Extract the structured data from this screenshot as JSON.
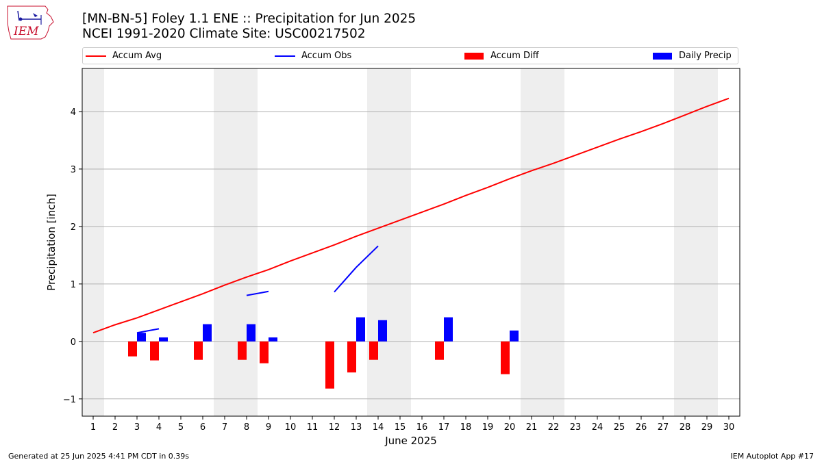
{
  "header": {
    "title_line1": "[MN-BN-5] Foley 1.1 ENE :: Precipitation for Jun 2025",
    "title_line2": "NCEI 1991-2020 Climate Site: USC00217502"
  },
  "logo": {
    "text": "IEM",
    "icon": "iem-iowa-logo-icon",
    "color": "#c8102e"
  },
  "footer": {
    "generated": "Generated at 25 Jun 2025 4:41 PM CDT in 0.39s",
    "app": "IEM Autoplot App #17"
  },
  "chart_data": {
    "type": "bar",
    "title": "[MN-BN-5] Foley 1.1 ENE :: Precipitation for Jun 2025",
    "xlabel": "June 2025",
    "ylabel": "Precipitation [inch]",
    "ylim": [
      -1.3,
      4.75
    ],
    "xlim": [
      0.5,
      30.5
    ],
    "yticks": [
      -1,
      0,
      1,
      2,
      3,
      4
    ],
    "ytick_labels": [
      "−1",
      "0",
      "1",
      "2",
      "3",
      "4"
    ],
    "xticks": [
      1,
      2,
      3,
      4,
      5,
      6,
      7,
      8,
      9,
      10,
      11,
      12,
      13,
      14,
      15,
      16,
      17,
      18,
      19,
      20,
      21,
      22,
      23,
      24,
      25,
      26,
      27,
      28,
      29,
      30
    ],
    "grid": "horizontal",
    "legend_position": "top",
    "weekend_shading": [
      [
        0.5,
        1.5
      ],
      [
        6.5,
        8.5
      ],
      [
        13.5,
        15.5
      ],
      [
        20.5,
        22.5
      ],
      [
        27.5,
        29.5
      ]
    ],
    "series": [
      {
        "name": "Accum Avg",
        "kind": "line",
        "color": "#ff0000",
        "x": [
          1,
          2,
          3,
          4,
          5,
          6,
          7,
          8,
          9,
          10,
          11,
          12,
          13,
          14,
          15,
          16,
          17,
          18,
          19,
          20,
          21,
          22,
          23,
          24,
          25,
          26,
          27,
          28,
          29,
          30
        ],
        "values": [
          0.15,
          0.29,
          0.41,
          0.55,
          0.69,
          0.83,
          0.98,
          1.12,
          1.25,
          1.4,
          1.54,
          1.68,
          1.83,
          1.97,
          2.11,
          2.25,
          2.39,
          2.54,
          2.68,
          2.83,
          2.97,
          3.1,
          3.24,
          3.38,
          3.52,
          3.65,
          3.79,
          3.94,
          4.09,
          4.23
        ]
      },
      {
        "name": "Accum Obs",
        "kind": "line",
        "color": "#0000ff",
        "segments": [
          {
            "x": [
              3,
              4
            ],
            "values": [
              0.15,
              0.22
            ]
          },
          {
            "x": [
              8,
              9
            ],
            "values": [
              0.8,
              0.87
            ]
          },
          {
            "x": [
              12,
              13,
              14
            ],
            "values": [
              0.86,
              1.29,
              1.66
            ]
          }
        ]
      },
      {
        "name": "Accum Diff",
        "kind": "bar",
        "color": "#ff0000",
        "x": [
          3,
          4,
          6,
          8,
          9,
          12,
          13,
          14,
          17,
          20
        ],
        "values": [
          -0.26,
          -0.33,
          -0.32,
          -0.32,
          -0.38,
          -0.82,
          -0.54,
          -0.32,
          -0.32,
          -0.57
        ]
      },
      {
        "name": "Daily Precip",
        "kind": "bar",
        "color": "#0000ff",
        "x": [
          3,
          4,
          6,
          8,
          9,
          13,
          14,
          17,
          20
        ],
        "values": [
          0.15,
          0.07,
          0.3,
          0.3,
          0.07,
          0.42,
          0.37,
          0.42,
          0.19
        ]
      }
    ]
  }
}
